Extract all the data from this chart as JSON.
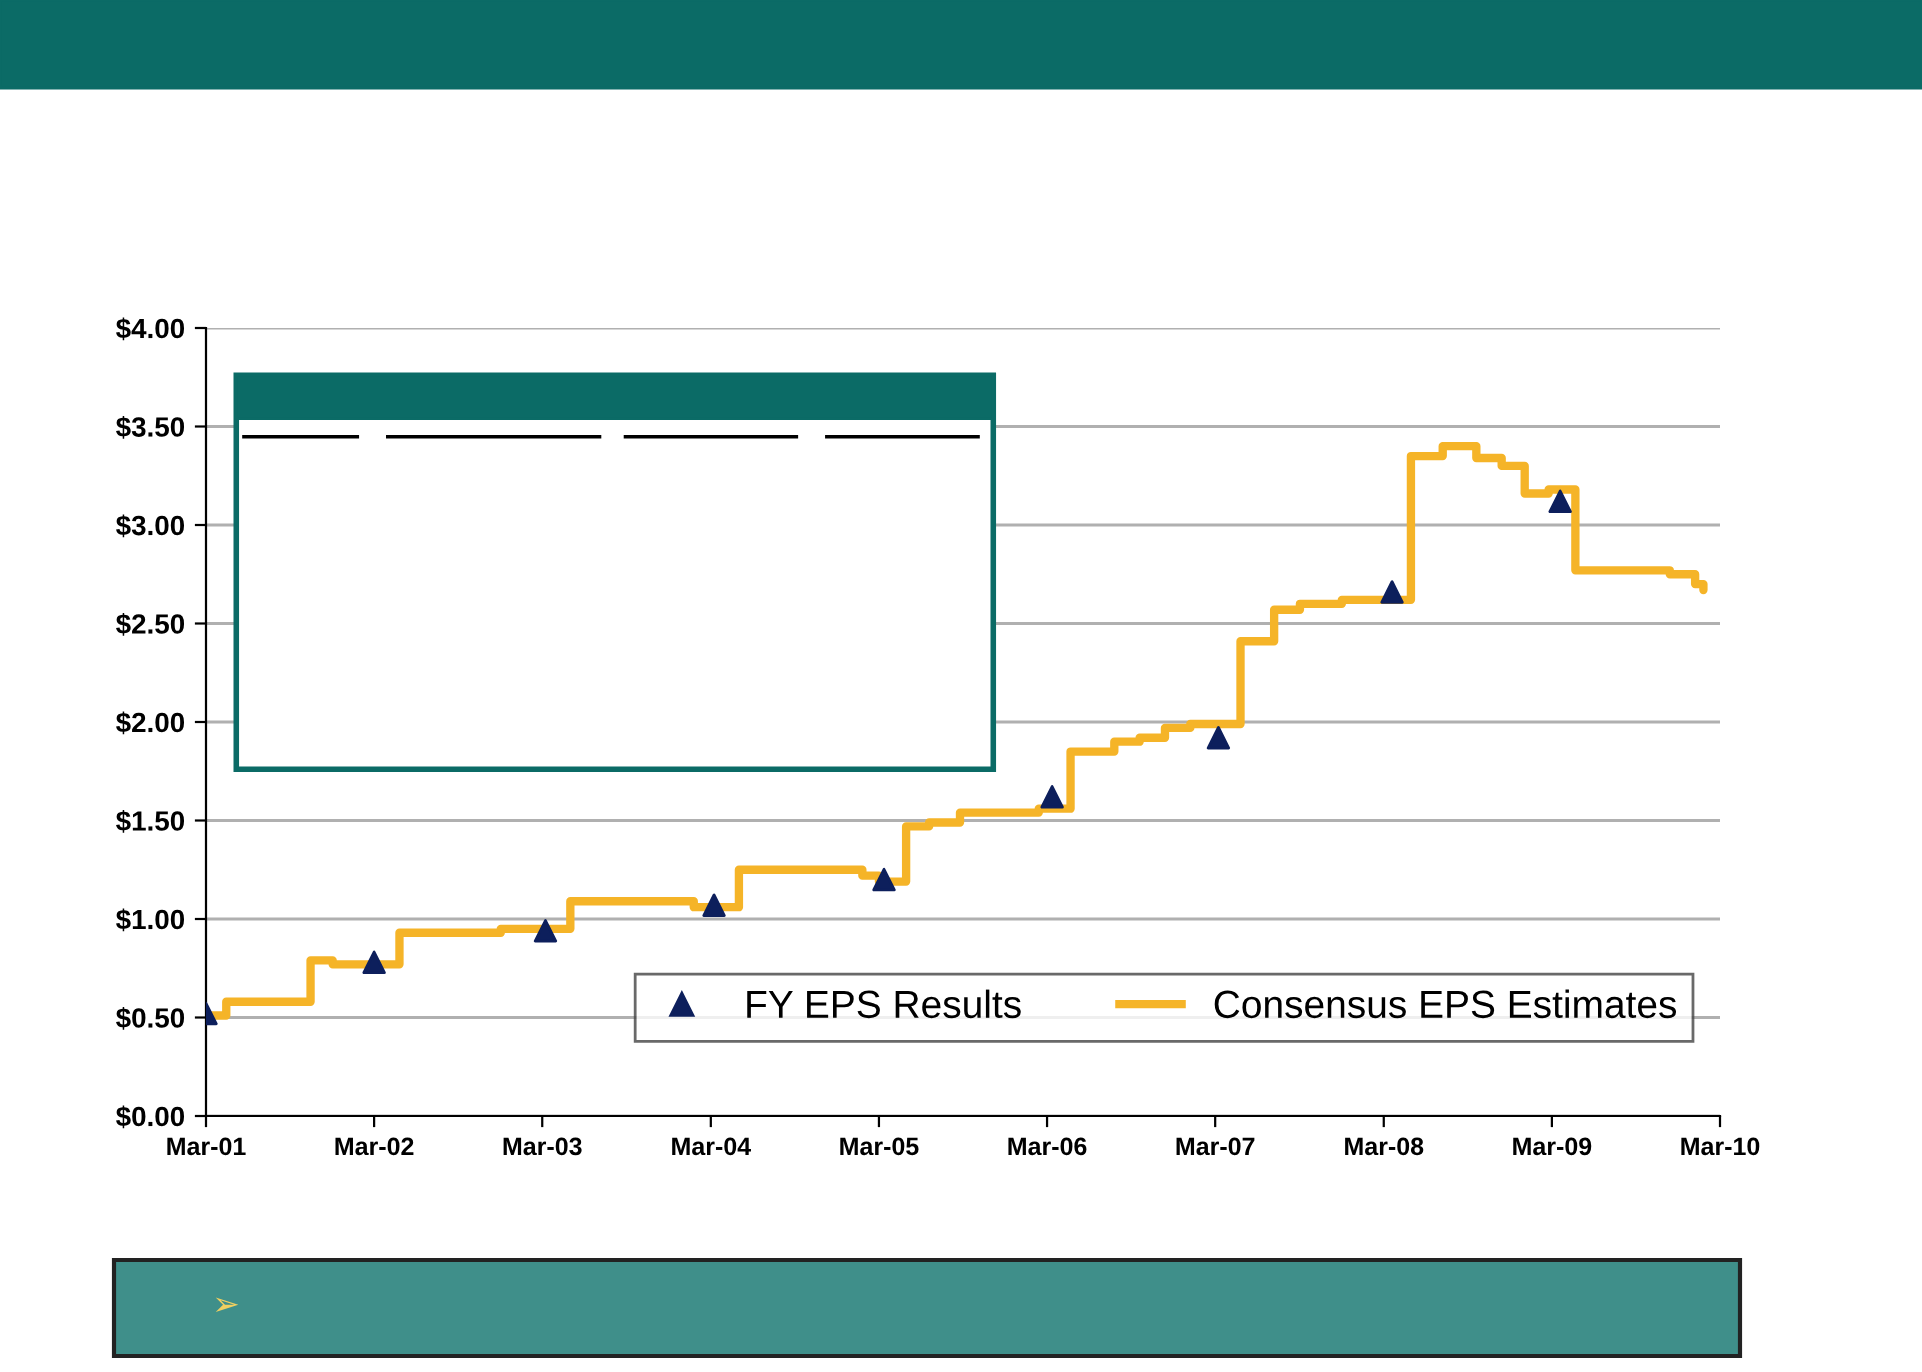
{
  "chart_data": {
    "type": "step",
    "legend": "bottom right",
    "grid": "y",
    "annotations": [
      "➢"
    ],
    "xlim": [
      "2001-03-01",
      "2010-03-01"
    ],
    "xticks": [
      {
        "value": "2001-03-01",
        "label": "Mar-01"
      },
      {
        "value": "2002-03-01",
        "label": "Mar-02"
      },
      {
        "value": "2003-03-01",
        "label": "Mar-03"
      },
      {
        "value": "2004-03-01",
        "label": "Mar-04"
      },
      {
        "value": "2005-03-01",
        "label": "Mar-05"
      },
      {
        "value": "2006-03-01",
        "label": "Mar-06"
      },
      {
        "value": "2007-03-01",
        "label": "Mar-07"
      },
      {
        "value": "2008-03-01",
        "label": "Mar-08"
      },
      {
        "value": "2009-03-01",
        "label": "Mar-09"
      },
      {
        "value": "2010-03-01",
        "label": "Mar-10"
      }
    ],
    "ylim": [
      0,
      4
    ],
    "yticks": [
      {
        "value": 0,
        "label": "$0.00"
      },
      {
        "value": 0.5,
        "label": "$0.50"
      },
      {
        "value": 1,
        "label": "$1.00"
      },
      {
        "value": 1.5,
        "label": "$1.50"
      },
      {
        "value": 2,
        "label": "$2.00"
      },
      {
        "value": 2.5,
        "label": "$2.50"
      },
      {
        "value": 3,
        "label": "$3.00"
      },
      {
        "value": 3.5,
        "label": "$3.50"
      },
      {
        "value": 4,
        "label": "$4.00"
      }
    ],
    "series": [
      {
        "name": "FY EPS Results",
        "type": "scatter",
        "marker": "triangle",
        "color": "#0d1f5c",
        "x": [
          "2001-03-01",
          "2002-03-01",
          "2003-03-08",
          "2004-03-08",
          "2005-03-12",
          "2006-03-12",
          "2007-03-08",
          "2008-03-19",
          "2009-03-19"
        ],
        "values": [
          0.52,
          0.78,
          0.94,
          1.07,
          1.2,
          1.62,
          1.92,
          2.66,
          3.12
        ]
      },
      {
        "name": "Consensus EPS Estimates",
        "color": "#f5b428",
        "x": [
          "2001-03-01",
          "2001-04-14",
          "2001-10-14",
          "2001-12-01",
          "2002-04-25",
          "2002-12-01",
          "2003-05-01",
          "2004-01-24",
          "2004-05-01",
          "2005-01-24",
          "2005-03-01",
          "2005-04-29",
          "2005-06-18",
          "2005-08-24",
          "2006-02-11",
          "2006-04-21",
          "2006-07-25",
          "2006-09-18",
          "2006-11-12",
          "2007-01-06",
          "2007-04-25",
          "2007-07-07",
          "2007-09-01",
          "2007-12-01",
          "2008-04-29",
          "2008-07-07",
          "2008-09-18",
          "2008-11-12",
          "2009-01-01",
          "2009-02-22",
          "2009-04-21",
          "2009-11-12",
          "2010-01-06",
          "2010-01-24"
        ],
        "values": [
          0.51,
          0.58,
          0.79,
          0.77,
          0.93,
          0.95,
          1.09,
          1.06,
          1.25,
          1.22,
          1.19,
          1.47,
          1.49,
          1.54,
          1.56,
          1.85,
          1.9,
          1.92,
          1.97,
          1.99,
          2.41,
          2.57,
          2.6,
          2.62,
          3.35,
          3.4,
          3.34,
          3.3,
          3.16,
          3.18,
          2.77,
          2.75,
          2.7,
          2.67
        ]
      }
    ]
  }
}
